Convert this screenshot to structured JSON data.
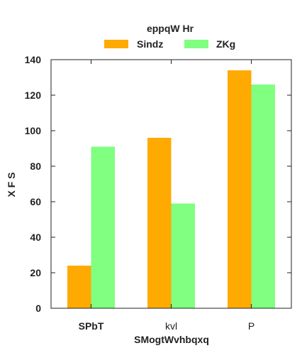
{
  "chart_data": {
    "type": "bar",
    "legend_title": "eppqW Hr",
    "legend_position": "top-center",
    "categories": [
      "SPbT",
      "kvl",
      "P"
    ],
    "series": [
      {
        "name": "Sindz",
        "values": [
          24,
          96,
          134
        ],
        "color": "#FFAA00"
      },
      {
        "name": "ZKg",
        "values": [
          91,
          59,
          126
        ],
        "color": "#80FF80"
      }
    ],
    "xlabel": "SMogtWvhbqxq",
    "ylabel": "X F S",
    "yticks": [
      0,
      20,
      40,
      60,
      80,
      100,
      120,
      140
    ],
    "ylim": [
      0,
      140
    ],
    "grid": false
  }
}
